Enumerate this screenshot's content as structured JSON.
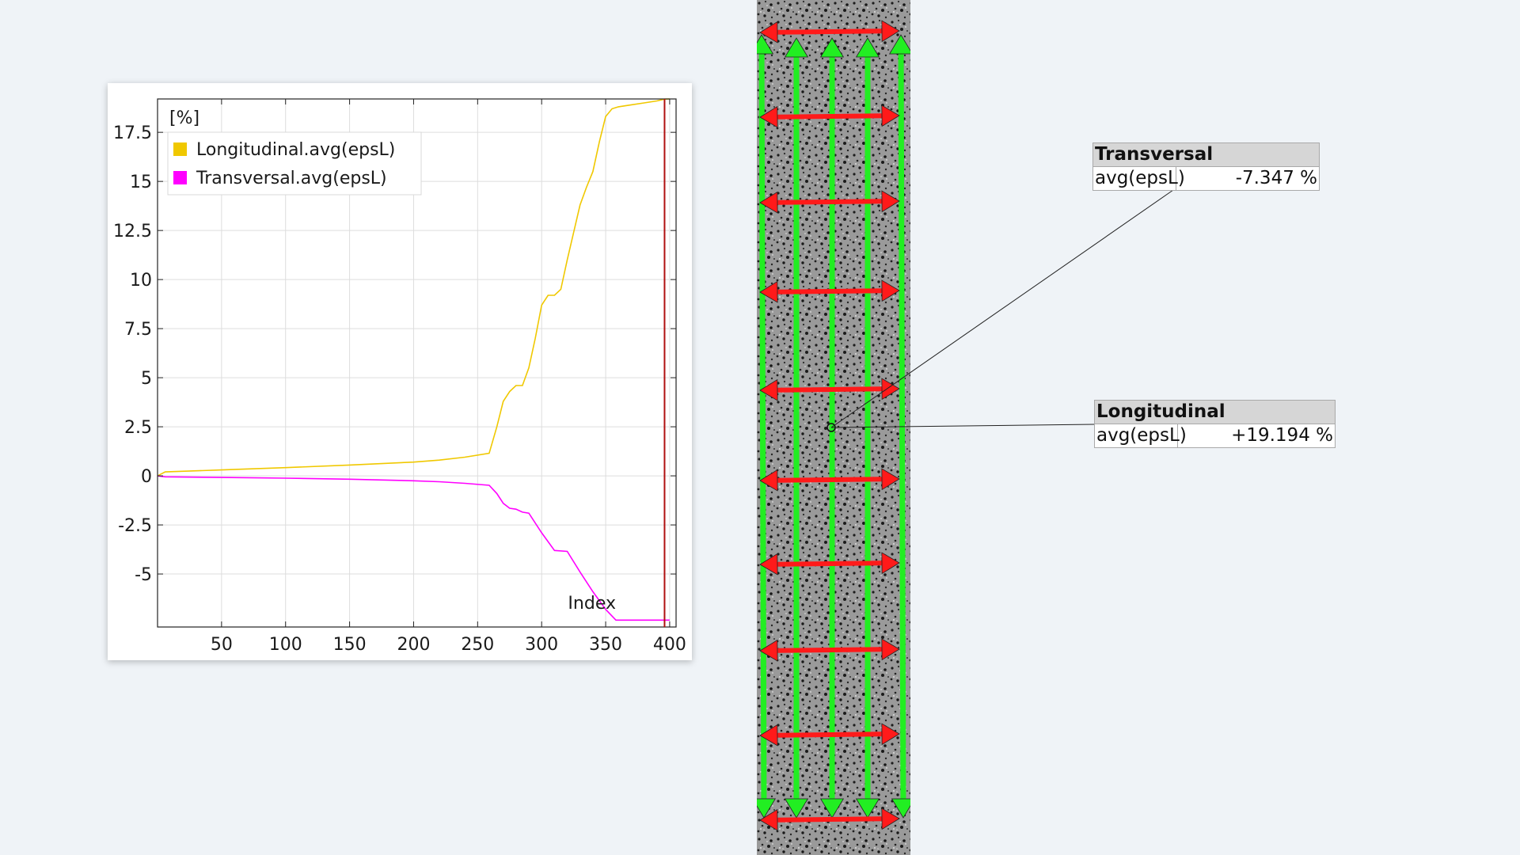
{
  "chart_data": {
    "type": "line",
    "y_unit": "[%]",
    "xlabel": "Index",
    "xlim": [
      0,
      405
    ],
    "ylim": [
      -7.7,
      19.2
    ],
    "x_ticks": [
      50,
      100,
      150,
      200,
      250,
      300,
      350,
      400
    ],
    "y_ticks": [
      17.5,
      15,
      12.5,
      10,
      7.5,
      5,
      2.5,
      0,
      -2.5,
      -5
    ],
    "grid": true,
    "legend_position": "top-left",
    "cursor_index": 396,
    "series": [
      {
        "name": "Longitudinal.avg(epsL)",
        "color": "#f0c800",
        "x": [
          0,
          6,
          50,
          100,
          150,
          200,
          220,
          240,
          259,
          265,
          270,
          275,
          280,
          285,
          290,
          295,
          300,
          305,
          310,
          315,
          320,
          325,
          330,
          335,
          340,
          345,
          350,
          355,
          360,
          370,
          380,
          390,
          396,
          400
        ],
        "y": [
          0,
          0.2,
          0.3,
          0.42,
          0.55,
          0.7,
          0.8,
          0.95,
          1.15,
          2.5,
          3.8,
          4.3,
          4.6,
          4.6,
          5.5,
          7.0,
          8.7,
          9.2,
          9.2,
          9.5,
          11.0,
          12.4,
          13.8,
          14.7,
          15.5,
          17.0,
          18.3,
          18.7,
          18.8,
          18.9,
          19.0,
          19.1,
          19.19,
          19.2
        ],
        "current_value": "+19.194 %"
      },
      {
        "name": "Transversal.avg(epsL)",
        "color": "#ff00ff",
        "x": [
          0,
          6,
          50,
          100,
          150,
          200,
          220,
          240,
          259,
          265,
          270,
          275,
          280,
          285,
          290,
          300,
          310,
          320,
          330,
          340,
          350,
          358,
          370,
          380,
          396,
          400
        ],
        "y": [
          0,
          -0.05,
          -0.08,
          -0.12,
          -0.17,
          -0.25,
          -0.3,
          -0.38,
          -0.48,
          -0.9,
          -1.4,
          -1.65,
          -1.7,
          -1.85,
          -1.9,
          -2.9,
          -3.8,
          -3.85,
          -4.9,
          -5.9,
          -6.8,
          -7.35,
          -7.35,
          -7.35,
          -7.35,
          -7.35
        ],
        "current_value": "-7.347 %"
      }
    ]
  },
  "callouts": {
    "transversal": {
      "title": "Transversal",
      "label": "avg(epsL)",
      "value": "-7.347 %"
    },
    "longitudinal": {
      "title": "Longitudinal",
      "label": "avg(epsL)",
      "value": "+19.194 %"
    }
  },
  "specimen": {
    "horizontal_gauge_color": "#ff1a1a",
    "vertical_gauge_color": "#22ee22",
    "horizontal_gauge_count": 10,
    "vertical_gauge_count": 5
  }
}
